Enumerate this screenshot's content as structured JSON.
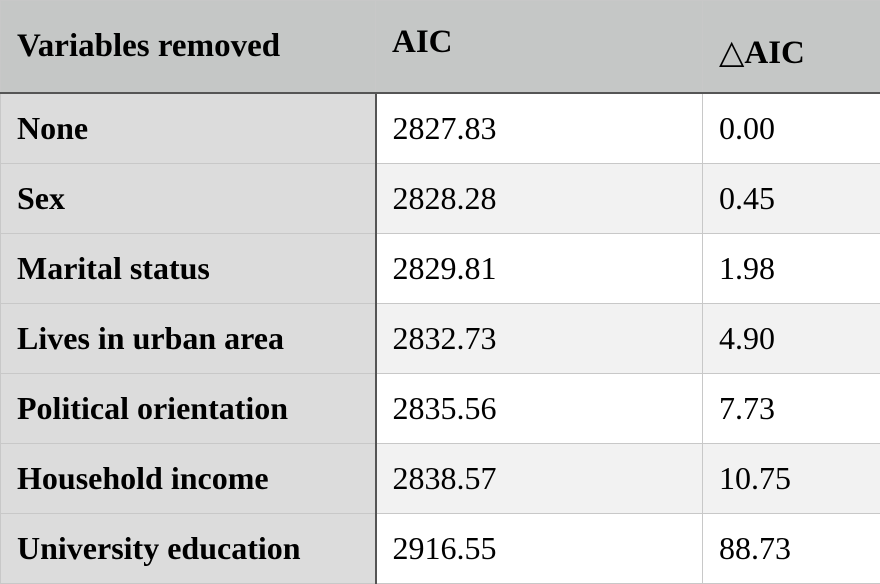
{
  "table": {
    "headers": {
      "variable": "Variables removed",
      "aic": "AIC",
      "delta_aic": "△AIC"
    },
    "rows": [
      {
        "variable": "None",
        "aic": "2827.83",
        "delta_aic": "0.00"
      },
      {
        "variable": "Sex",
        "aic": "2828.28",
        "delta_aic": "0.45"
      },
      {
        "variable": "Marital status",
        "aic": "2829.81",
        "delta_aic": "1.98"
      },
      {
        "variable": "Lives in urban area",
        "aic": "2832.73",
        "delta_aic": "4.90"
      },
      {
        "variable": "Political orientation",
        "aic": "2835.56",
        "delta_aic": "7.73"
      },
      {
        "variable": "Household income",
        "aic": "2838.57",
        "delta_aic": "10.75"
      },
      {
        "variable": "University education",
        "aic": "2916.55",
        "delta_aic": "88.73"
      }
    ]
  },
  "colors": {
    "header_background": "#c5c7c6",
    "first_column_background": "#dcdcdc",
    "alternate_row_background": "#f2f2f2",
    "grid_line": "#c8c8c8",
    "heavy_rule": "#555555"
  }
}
